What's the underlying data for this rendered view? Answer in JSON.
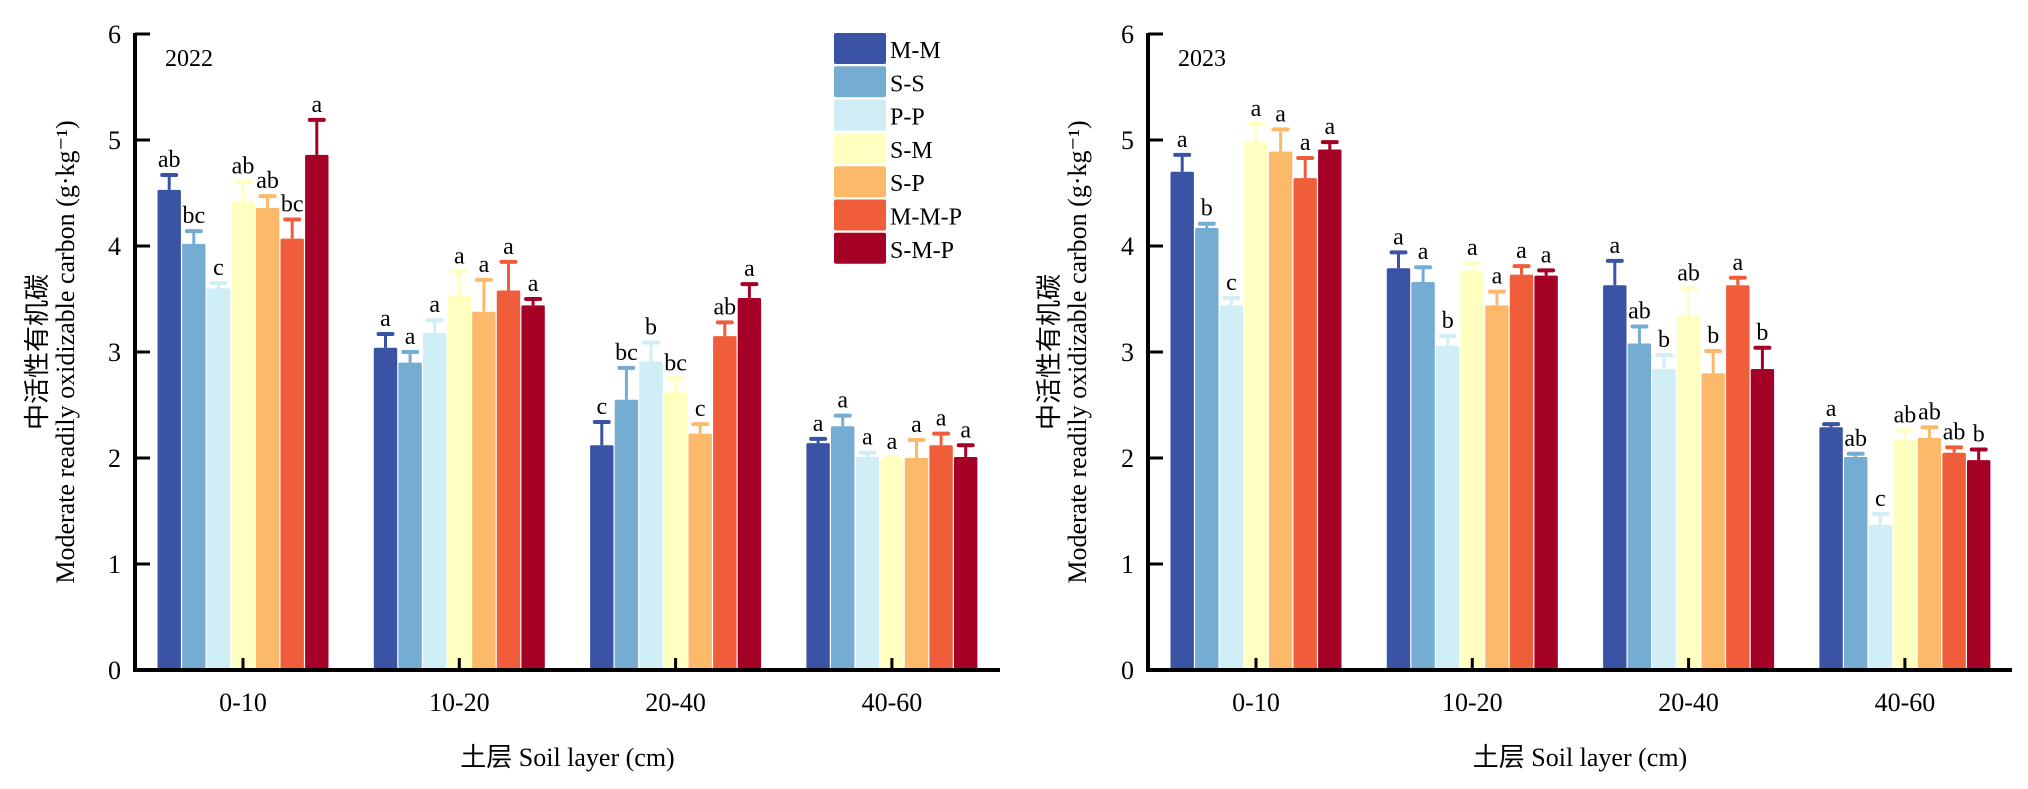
{
  "chart_data": [
    {
      "type": "bar",
      "panel_label": "2022",
      "title": "",
      "xlabel": "土层 Soil layer (cm)",
      "ylabel_cn": "中活性有机碳",
      "ylabel_en": "Moderate readily oxidizable carbon (g·kg⁻¹)",
      "ylim": [
        0,
        6
      ],
      "yticks": [
        "0",
        "1",
        "2",
        "3",
        "4",
        "5",
        "6"
      ],
      "grid": false,
      "legend_position": "top-right",
      "categories": [
        "0-10",
        "10-20",
        "20-40",
        "40-60"
      ],
      "series": [
        {
          "name": "M-M",
          "color": "#3A53A4",
          "values": [
            4.53,
            3.04,
            2.12,
            2.14
          ],
          "errors": [
            0.14,
            0.13,
            0.22,
            0.04
          ],
          "letters": [
            "ab",
            "a",
            "c",
            "a"
          ]
        },
        {
          "name": "S-S",
          "color": "#74ADD1",
          "values": [
            4.02,
            2.9,
            2.55,
            2.3
          ],
          "errors": [
            0.12,
            0.1,
            0.3,
            0.1
          ],
          "letters": [
            "bc",
            "a",
            "bc",
            "a"
          ]
        },
        {
          "name": "P-P",
          "color": "#D0EEF6",
          "values": [
            3.6,
            3.18,
            2.91,
            2.01
          ],
          "errors": [
            0.05,
            0.12,
            0.18,
            0.04
          ],
          "letters": [
            "c",
            "a",
            "b",
            "a"
          ]
        },
        {
          "name": "S-M",
          "color": "#FFFFBF",
          "values": [
            4.42,
            3.53,
            2.62,
            1.98
          ],
          "errors": [
            0.19,
            0.23,
            0.13,
            0.03
          ],
          "letters": [
            "ab",
            "a",
            "bc",
            "a"
          ]
        },
        {
          "name": "S-P",
          "color": "#FDB96A",
          "values": [
            4.36,
            3.38,
            2.23,
            2.0
          ],
          "errors": [
            0.11,
            0.3,
            0.09,
            0.17
          ],
          "letters": [
            "ab",
            "a",
            "c",
            "a"
          ]
        },
        {
          "name": "M-M-P",
          "color": "#F05D3B",
          "values": [
            4.07,
            3.58,
            3.15,
            2.12
          ],
          "errors": [
            0.18,
            0.27,
            0.13,
            0.11
          ],
          "letters": [
            "bc",
            "a",
            "ab",
            "a"
          ]
        },
        {
          "name": "S-M-P",
          "color": "#A50026",
          "values": [
            4.86,
            3.44,
            3.51,
            2.01
          ],
          "errors": [
            0.33,
            0.06,
            0.13,
            0.11
          ],
          "letters": [
            "a",
            "a",
            "a",
            "a"
          ]
        }
      ]
    },
    {
      "type": "bar",
      "panel_label": "2023",
      "title": "",
      "xlabel": "土层 Soil layer (cm)",
      "ylabel_cn": "中活性有机碳",
      "ylabel_en": "Moderate readily oxidizable carbon (g·kg⁻¹)",
      "ylim": [
        0,
        6
      ],
      "yticks": [
        "0",
        "1",
        "2",
        "3",
        "4",
        "5",
        "6"
      ],
      "grid": false,
      "legend_position": "none",
      "categories": [
        "0-10",
        "10-20",
        "20-40",
        "40-60"
      ],
      "series": [
        {
          "name": "M-M",
          "color": "#3A53A4",
          "values": [
            4.7,
            3.79,
            3.63,
            2.29
          ],
          "errors": [
            0.16,
            0.15,
            0.23,
            0.03
          ],
          "letters": [
            "a",
            "a",
            "a",
            "a"
          ]
        },
        {
          "name": "S-S",
          "color": "#74ADD1",
          "values": [
            4.17,
            3.66,
            3.08,
            2.01
          ],
          "errors": [
            0.04,
            0.14,
            0.16,
            0.03
          ],
          "letters": [
            "b",
            "a",
            "ab",
            "ab"
          ]
        },
        {
          "name": "P-P",
          "color": "#D0EEF6",
          "values": [
            3.44,
            3.06,
            2.84,
            1.37
          ],
          "errors": [
            0.07,
            0.09,
            0.13,
            0.1
          ],
          "letters": [
            "c",
            "b",
            "b",
            "c"
          ]
        },
        {
          "name": "S-M",
          "color": "#FFFFBF",
          "values": [
            4.98,
            3.77,
            3.35,
            2.17
          ],
          "errors": [
            0.17,
            0.07,
            0.25,
            0.09
          ],
          "letters": [
            "a",
            "a",
            "ab",
            "ab"
          ]
        },
        {
          "name": "S-P",
          "color": "#FDB96A",
          "values": [
            4.89,
            3.44,
            2.8,
            2.19
          ],
          "errors": [
            0.21,
            0.13,
            0.21,
            0.1
          ],
          "letters": [
            "a",
            "a",
            "b",
            "ab"
          ]
        },
        {
          "name": "M-M-P",
          "color": "#F05D3B",
          "values": [
            4.64,
            3.73,
            3.63,
            2.05
          ],
          "errors": [
            0.19,
            0.08,
            0.07,
            0.05
          ],
          "letters": [
            "a",
            "a",
            "a",
            "ab"
          ]
        },
        {
          "name": "S-M-P",
          "color": "#A50026",
          "values": [
            4.91,
            3.72,
            2.84,
            1.98
          ],
          "errors": [
            0.07,
            0.05,
            0.2,
            0.1
          ],
          "letters": [
            "a",
            "a",
            "b",
            "b"
          ]
        }
      ]
    }
  ]
}
